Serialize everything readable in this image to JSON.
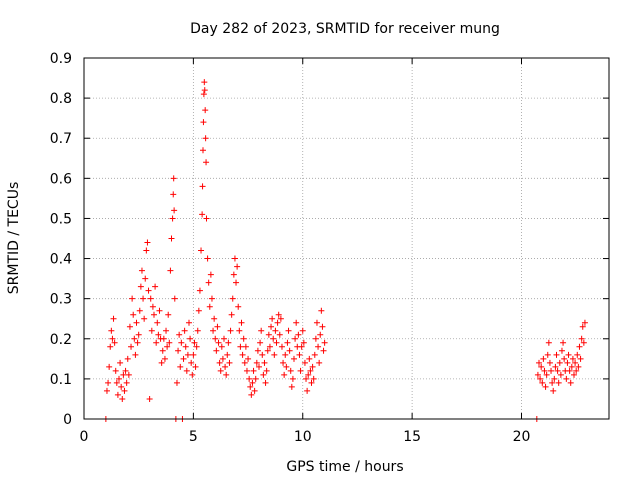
{
  "chart_data": {
    "type": "scatter",
    "title": "Day 282 of 2023, SRMTID for receiver mung",
    "xlabel": "GPS time / hours",
    "ylabel": "SRMTID / TECUs",
    "xlim": [
      0,
      24
    ],
    "ylim": [
      0,
      0.9
    ],
    "xticks": [
      0,
      5,
      10,
      15,
      20
    ],
    "xtick_labels": [
      "0",
      "5",
      "10",
      "15",
      "20"
    ],
    "yticks": [
      0,
      0.1,
      0.2,
      0.3,
      0.4,
      0.5,
      0.6,
      0.7,
      0.8,
      0.9
    ],
    "ytick_labels": [
      "0",
      "0.1",
      "0.2",
      "0.3",
      "0.4",
      "0.5",
      "0.6",
      "0.7",
      "0.8",
      "0.9"
    ],
    "grid": true,
    "marker": "plus",
    "color": "#ff0000",
    "series": [
      {
        "name": "SRMTID",
        "points": [
          [
            1.0,
            0.0
          ],
          [
            1.05,
            0.07
          ],
          [
            1.1,
            0.09
          ],
          [
            1.15,
            0.13
          ],
          [
            1.2,
            0.18
          ],
          [
            1.25,
            0.22
          ],
          [
            1.3,
            0.2
          ],
          [
            1.35,
            0.25
          ],
          [
            1.4,
            0.19
          ],
          [
            1.45,
            0.12
          ],
          [
            1.5,
            0.09
          ],
          [
            1.55,
            0.06
          ],
          [
            1.6,
            0.1
          ],
          [
            1.65,
            0.14
          ],
          [
            1.7,
            0.08
          ],
          [
            1.75,
            0.05
          ],
          [
            1.8,
            0.11
          ],
          [
            1.85,
            0.07
          ],
          [
            1.9,
            0.12
          ],
          [
            1.95,
            0.09
          ],
          [
            2.0,
            0.15
          ],
          [
            2.05,
            0.11
          ],
          [
            2.1,
            0.23
          ],
          [
            2.15,
            0.18
          ],
          [
            2.2,
            0.3
          ],
          [
            2.25,
            0.26
          ],
          [
            2.3,
            0.2
          ],
          [
            2.35,
            0.16
          ],
          [
            2.4,
            0.24
          ],
          [
            2.45,
            0.19
          ],
          [
            2.5,
            0.21
          ],
          [
            2.55,
            0.27
          ],
          [
            2.6,
            0.33
          ],
          [
            2.65,
            0.37
          ],
          [
            2.7,
            0.3
          ],
          [
            2.75,
            0.25
          ],
          [
            2.8,
            0.35
          ],
          [
            2.85,
            0.42
          ],
          [
            2.9,
            0.44
          ],
          [
            2.95,
            0.32
          ],
          [
            3.0,
            0.05
          ],
          [
            3.05,
            0.3
          ],
          [
            3.1,
            0.22
          ],
          [
            3.15,
            0.28
          ],
          [
            3.2,
            0.26
          ],
          [
            3.25,
            0.33
          ],
          [
            3.3,
            0.19
          ],
          [
            3.35,
            0.24
          ],
          [
            3.4,
            0.21
          ],
          [
            3.45,
            0.27
          ],
          [
            3.5,
            0.2
          ],
          [
            3.55,
            0.14
          ],
          [
            3.6,
            0.17
          ],
          [
            3.65,
            0.2
          ],
          [
            3.7,
            0.15
          ],
          [
            3.75,
            0.22
          ],
          [
            3.8,
            0.18
          ],
          [
            3.85,
            0.26
          ],
          [
            3.9,
            0.19
          ],
          [
            3.95,
            0.37
          ],
          [
            4.0,
            0.45
          ],
          [
            4.05,
            0.5
          ],
          [
            4.08,
            0.56
          ],
          [
            4.1,
            0.6
          ],
          [
            4.12,
            0.52
          ],
          [
            4.15,
            0.3
          ],
          [
            4.2,
            0.0
          ],
          [
            4.25,
            0.09
          ],
          [
            4.3,
            0.17
          ],
          [
            4.35,
            0.21
          ],
          [
            4.4,
            0.13
          ],
          [
            4.45,
            0.19
          ],
          [
            4.5,
            0.0
          ],
          [
            4.55,
            0.15
          ],
          [
            4.6,
            0.22
          ],
          [
            4.65,
            0.18
          ],
          [
            4.7,
            0.12
          ],
          [
            4.75,
            0.16
          ],
          [
            4.8,
            0.24
          ],
          [
            4.85,
            0.2
          ],
          [
            4.9,
            0.14
          ],
          [
            4.95,
            0.11
          ],
          [
            5.0,
            0.16
          ],
          [
            5.05,
            0.19
          ],
          [
            5.1,
            0.13
          ],
          [
            5.15,
            0.18
          ],
          [
            5.2,
            0.22
          ],
          [
            5.25,
            0.27
          ],
          [
            5.3,
            0.32
          ],
          [
            5.35,
            0.42
          ],
          [
            5.4,
            0.51
          ],
          [
            5.42,
            0.58
          ],
          [
            5.44,
            0.67
          ],
          [
            5.46,
            0.74
          ],
          [
            5.48,
            0.81
          ],
          [
            5.5,
            0.84
          ],
          [
            5.52,
            0.82
          ],
          [
            5.54,
            0.77
          ],
          [
            5.56,
            0.7
          ],
          [
            5.58,
            0.64
          ],
          [
            5.6,
            0.5
          ],
          [
            5.65,
            0.4
          ],
          [
            5.7,
            0.34
          ],
          [
            5.75,
            0.28
          ],
          [
            5.8,
            0.36
          ],
          [
            5.85,
            0.3
          ],
          [
            5.9,
            0.22
          ],
          [
            5.95,
            0.25
          ],
          [
            6.0,
            0.2
          ],
          [
            6.05,
            0.17
          ],
          [
            6.1,
            0.23
          ],
          [
            6.15,
            0.19
          ],
          [
            6.2,
            0.14
          ],
          [
            6.25,
            0.12
          ],
          [
            6.3,
            0.18
          ],
          [
            6.35,
            0.15
          ],
          [
            6.4,
            0.2
          ],
          [
            6.45,
            0.13
          ],
          [
            6.5,
            0.11
          ],
          [
            6.55,
            0.16
          ],
          [
            6.6,
            0.19
          ],
          [
            6.65,
            0.14
          ],
          [
            6.7,
            0.22
          ],
          [
            6.75,
            0.26
          ],
          [
            6.8,
            0.3
          ],
          [
            6.85,
            0.36
          ],
          [
            6.9,
            0.4
          ],
          [
            6.95,
            0.34
          ],
          [
            7.0,
            0.38
          ],
          [
            7.05,
            0.28
          ],
          [
            7.1,
            0.22
          ],
          [
            7.15,
            0.18
          ],
          [
            7.2,
            0.24
          ],
          [
            7.25,
            0.16
          ],
          [
            7.3,
            0.2
          ],
          [
            7.35,
            0.14
          ],
          [
            7.4,
            0.18
          ],
          [
            7.45,
            0.12
          ],
          [
            7.5,
            0.15
          ],
          [
            7.55,
            0.1
          ],
          [
            7.6,
            0.08
          ],
          [
            7.65,
            0.06
          ],
          [
            7.7,
            0.09
          ],
          [
            7.75,
            0.12
          ],
          [
            7.8,
            0.07
          ],
          [
            7.85,
            0.1
          ],
          [
            7.9,
            0.14
          ],
          [
            7.95,
            0.17
          ],
          [
            8.0,
            0.13
          ],
          [
            8.05,
            0.19
          ],
          [
            8.1,
            0.22
          ],
          [
            8.15,
            0.16
          ],
          [
            8.2,
            0.11
          ],
          [
            8.25,
            0.14
          ],
          [
            8.3,
            0.09
          ],
          [
            8.35,
            0.12
          ],
          [
            8.4,
            0.17
          ],
          [
            8.45,
            0.21
          ],
          [
            8.5,
            0.18
          ],
          [
            8.55,
            0.23
          ],
          [
            8.6,
            0.25
          ],
          [
            8.65,
            0.2
          ],
          [
            8.7,
            0.16
          ],
          [
            8.75,
            0.22
          ],
          [
            8.8,
            0.19
          ],
          [
            8.85,
            0.24
          ],
          [
            8.9,
            0.26
          ],
          [
            8.95,
            0.21
          ],
          [
            9.0,
            0.25
          ],
          [
            9.05,
            0.18
          ],
          [
            9.1,
            0.14
          ],
          [
            9.15,
            0.11
          ],
          [
            9.2,
            0.16
          ],
          [
            9.25,
            0.13
          ],
          [
            9.3,
            0.19
          ],
          [
            9.35,
            0.22
          ],
          [
            9.4,
            0.17
          ],
          [
            9.45,
            0.12
          ],
          [
            9.5,
            0.08
          ],
          [
            9.55,
            0.1
          ],
          [
            9.6,
            0.15
          ],
          [
            9.65,
            0.2
          ],
          [
            9.7,
            0.24
          ],
          [
            9.75,
            0.18
          ],
          [
            9.8,
            0.21
          ],
          [
            9.85,
            0.16
          ],
          [
            9.9,
            0.12
          ],
          [
            9.95,
            0.18
          ],
          [
            10.0,
            0.22
          ],
          [
            10.05,
            0.19
          ],
          [
            10.1,
            0.14
          ],
          [
            10.15,
            0.1
          ],
          [
            10.2,
            0.07
          ],
          [
            10.25,
            0.11
          ],
          [
            10.3,
            0.15
          ],
          [
            10.35,
            0.12
          ],
          [
            10.4,
            0.09
          ],
          [
            10.45,
            0.13
          ],
          [
            10.5,
            0.1
          ],
          [
            10.55,
            0.16
          ],
          [
            10.6,
            0.2
          ],
          [
            10.65,
            0.24
          ],
          [
            10.7,
            0.18
          ],
          [
            10.75,
            0.14
          ],
          [
            10.8,
            0.21
          ],
          [
            10.85,
            0.27
          ],
          [
            10.9,
            0.23
          ],
          [
            10.95,
            0.17
          ],
          [
            11.0,
            0.19
          ],
          [
            20.7,
            0.0
          ],
          [
            20.75,
            0.11
          ],
          [
            20.8,
            0.14
          ],
          [
            20.85,
            0.1
          ],
          [
            20.9,
            0.13
          ],
          [
            20.95,
            0.09
          ],
          [
            21.0,
            0.15
          ],
          [
            21.05,
            0.12
          ],
          [
            21.1,
            0.08
          ],
          [
            21.15,
            0.11
          ],
          [
            21.2,
            0.16
          ],
          [
            21.25,
            0.19
          ],
          [
            21.3,
            0.14
          ],
          [
            21.35,
            0.12
          ],
          [
            21.4,
            0.09
          ],
          [
            21.45,
            0.07
          ],
          [
            21.5,
            0.1
          ],
          [
            21.55,
            0.13
          ],
          [
            21.6,
            0.16
          ],
          [
            21.65,
            0.12
          ],
          [
            21.7,
            0.09
          ],
          [
            21.75,
            0.14
          ],
          [
            21.8,
            0.11
          ],
          [
            21.85,
            0.17
          ],
          [
            21.9,
            0.19
          ],
          [
            21.95,
            0.15
          ],
          [
            22.0,
            0.12
          ],
          [
            22.05,
            0.1
          ],
          [
            22.1,
            0.14
          ],
          [
            22.15,
            0.16
          ],
          [
            22.2,
            0.12
          ],
          [
            22.25,
            0.09
          ],
          [
            22.3,
            0.13
          ],
          [
            22.35,
            0.15
          ],
          [
            22.4,
            0.11
          ],
          [
            22.45,
            0.14
          ],
          [
            22.5,
            0.12
          ],
          [
            22.55,
            0.16
          ],
          [
            22.6,
            0.13
          ],
          [
            22.65,
            0.18
          ],
          [
            22.7,
            0.15
          ],
          [
            22.75,
            0.2
          ],
          [
            22.8,
            0.23
          ],
          [
            22.85,
            0.19
          ],
          [
            22.9,
            0.24
          ]
        ]
      }
    ]
  }
}
